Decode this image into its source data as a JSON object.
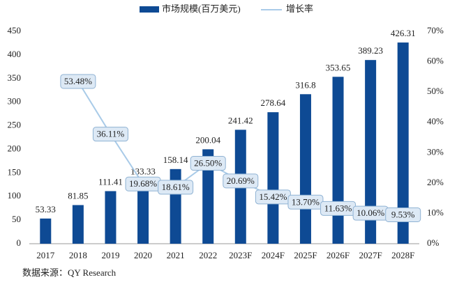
{
  "chart_data": {
    "type": "bar_line",
    "categories": [
      "2017",
      "2018",
      "2019",
      "2020",
      "2021",
      "2022",
      "2023F",
      "2024F",
      "2025F",
      "2026F",
      "2027F",
      "2028F"
    ],
    "series": [
      {
        "name": "市场规模(百万美元)",
        "color": "#0e4a94",
        "type": "bar",
        "values": [
          53.33,
          81.85,
          111.41,
          133.33,
          158.14,
          200.04,
          241.42,
          278.64,
          316.8,
          353.65,
          389.23,
          426.31
        ]
      },
      {
        "name": "增长率",
        "color": "#a9cbe8",
        "type": "line",
        "axis": "y2",
        "values": [
          null,
          53.48,
          36.11,
          19.68,
          18.61,
          26.5,
          20.69,
          15.42,
          13.7,
          11.63,
          10.06,
          9.53
        ],
        "value_labels": [
          null,
          "53.48%",
          "36.11%",
          "19.68%",
          "18.61%",
          "26.50%",
          "20.69%",
          "15.42%",
          "13.70%",
          "11.63%",
          "10.06%",
          "9.53%"
        ]
      }
    ],
    "ylim": [
      0,
      450
    ],
    "yticks": [
      0,
      50,
      100,
      150,
      200,
      250,
      300,
      350,
      400,
      450
    ],
    "y2lim": [
      0,
      70
    ],
    "y2ticks": [
      {
        "value": 0,
        "label": "0%"
      },
      {
        "value": 10,
        "label": "10%"
      },
      {
        "value": 20,
        "label": "20%"
      },
      {
        "value": 30,
        "label": "30%"
      },
      {
        "value": 40,
        "label": "40%"
      },
      {
        "value": 50,
        "label": "50%"
      },
      {
        "value": 60,
        "label": "60%"
      },
      {
        "value": 70,
        "label": "70%"
      }
    ],
    "legend": "top",
    "source": "数据来源：QY Research"
  }
}
